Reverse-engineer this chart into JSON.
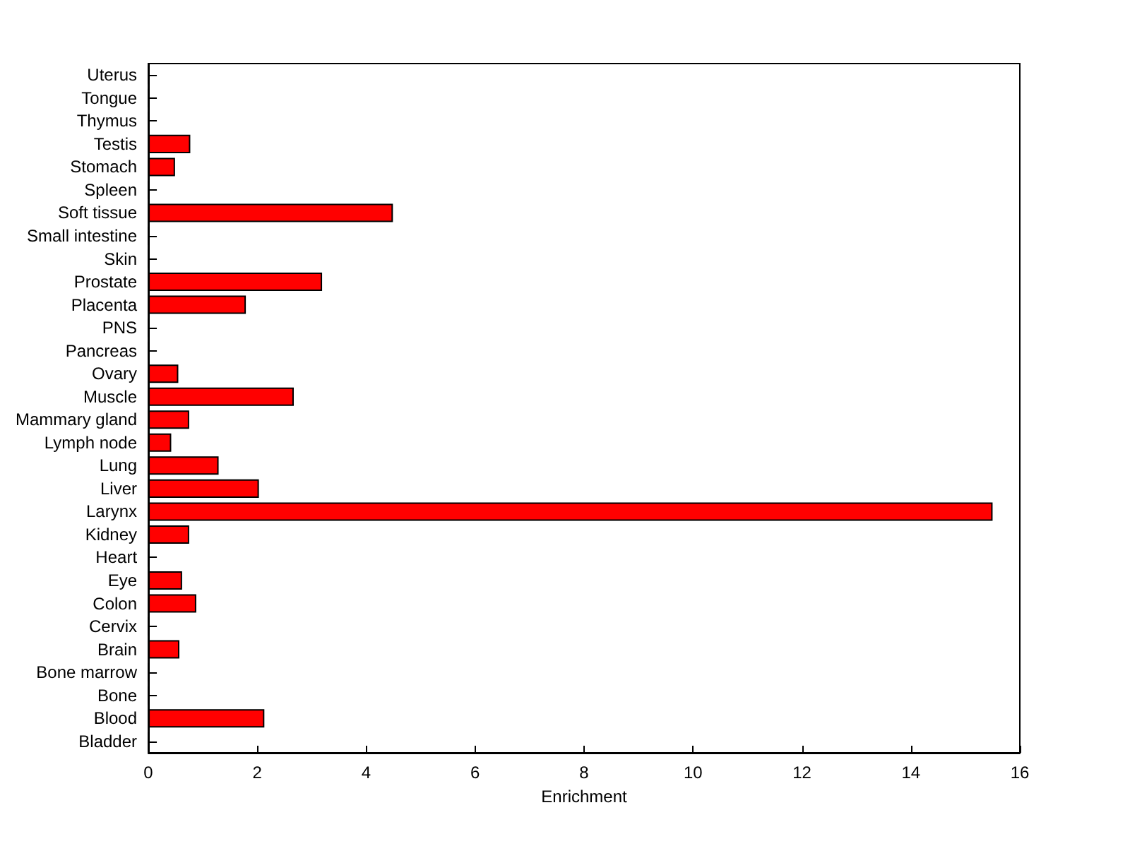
{
  "chart_data": {
    "type": "bar",
    "orientation": "horizontal",
    "xlabel": "Enrichment",
    "categories": [
      "Uterus",
      "Tongue",
      "Thymus",
      "Testis",
      "Stomach",
      "Spleen",
      "Soft tissue",
      "Small intestine",
      "Skin",
      "Prostate",
      "Placenta",
      "PNS",
      "Pancreas",
      "Ovary",
      "Muscle",
      "Mammary gland",
      "Lymph node",
      "Lung",
      "Liver",
      "Larynx",
      "Kidney",
      "Heart",
      "Eye",
      "Colon",
      "Cervix",
      "Brain",
      "Bone marrow",
      "Bone",
      "Blood",
      "Bladder"
    ],
    "values": [
      0,
      0,
      0,
      0.77,
      0.49,
      0,
      4.49,
      0,
      0,
      3.19,
      1.79,
      0,
      0,
      0.55,
      2.67,
      0.75,
      0.42,
      1.29,
      2.03,
      15.5,
      0.75,
      0,
      0.62,
      0.88,
      0,
      0.57,
      0,
      0,
      2.13,
      0
    ],
    "color": "#ff0000",
    "xlim": [
      0,
      16
    ],
    "xticks": [
      0,
      2,
      4,
      6,
      8,
      10,
      12,
      14,
      16
    ],
    "grid": false
  }
}
